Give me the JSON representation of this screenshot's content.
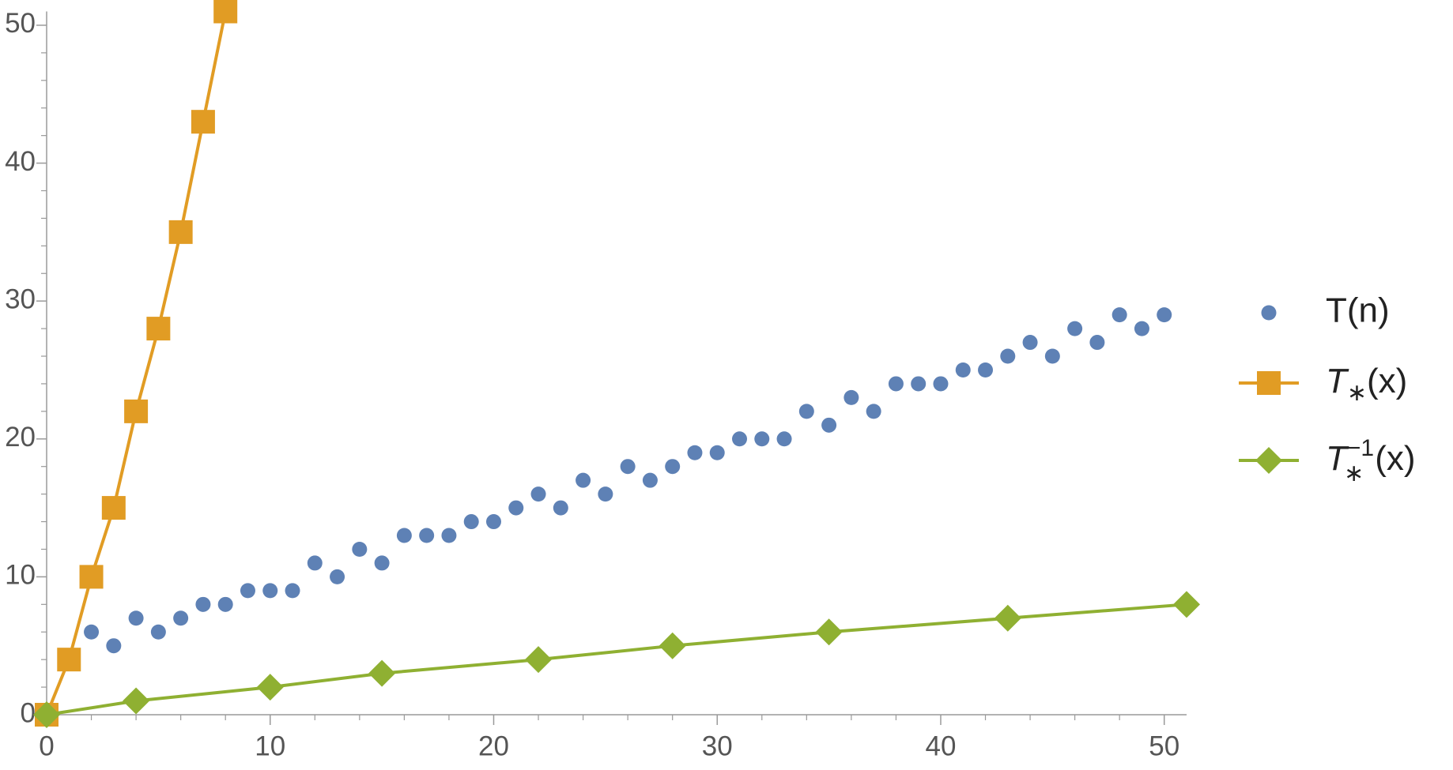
{
  "chart_data": {
    "type": "line",
    "xlim": [
      0,
      51
    ],
    "ylim": [
      0,
      51
    ],
    "xticks": [
      0,
      10,
      20,
      30,
      40,
      50
    ],
    "yticks": [
      0,
      10,
      20,
      30,
      40,
      50
    ],
    "legend": "right",
    "series": [
      {
        "name": "T(n)",
        "color": "#5e81b5",
        "marker": "circle",
        "line": false,
        "x": [
          2,
          3,
          4,
          5,
          6,
          7,
          8,
          9,
          10,
          11,
          12,
          13,
          14,
          15,
          16,
          17,
          18,
          19,
          20,
          21,
          22,
          23,
          24,
          25,
          26,
          27,
          28,
          29,
          30,
          31,
          32,
          33,
          34,
          35,
          36,
          37,
          38,
          39,
          40,
          41,
          42,
          43,
          44,
          45,
          46,
          47,
          48,
          49,
          50
        ],
        "values": [
          6,
          5,
          7,
          6,
          7,
          8,
          8,
          9,
          9,
          9,
          11,
          10,
          12,
          11,
          13,
          13,
          13,
          14,
          14,
          15,
          16,
          15,
          17,
          16,
          18,
          17,
          18,
          19,
          19,
          20,
          20,
          20,
          22,
          21,
          23,
          22,
          24,
          24,
          24,
          25,
          25,
          26,
          27,
          26,
          28,
          27,
          29,
          28,
          29
        ]
      },
      {
        "name": {
          "base": "T",
          "sub": "∗",
          "arg": "(x)"
        },
        "color": "#e19c24",
        "marker": "square",
        "line": true,
        "x": [
          0,
          1,
          2,
          3,
          4,
          5,
          6,
          7,
          8
        ],
        "values": [
          0,
          4,
          10,
          15,
          22,
          28,
          35,
          43,
          51
        ]
      },
      {
        "name": {
          "base": "T",
          "sub": "∗",
          "sup": "−1",
          "arg": "(x)"
        },
        "color": "#8fb032",
        "marker": "diamond",
        "line": true,
        "x": [
          0,
          4,
          10,
          15,
          22,
          28,
          35,
          43,
          51
        ],
        "values": [
          0,
          1,
          2,
          3,
          4,
          5,
          6,
          7,
          8
        ]
      }
    ]
  }
}
